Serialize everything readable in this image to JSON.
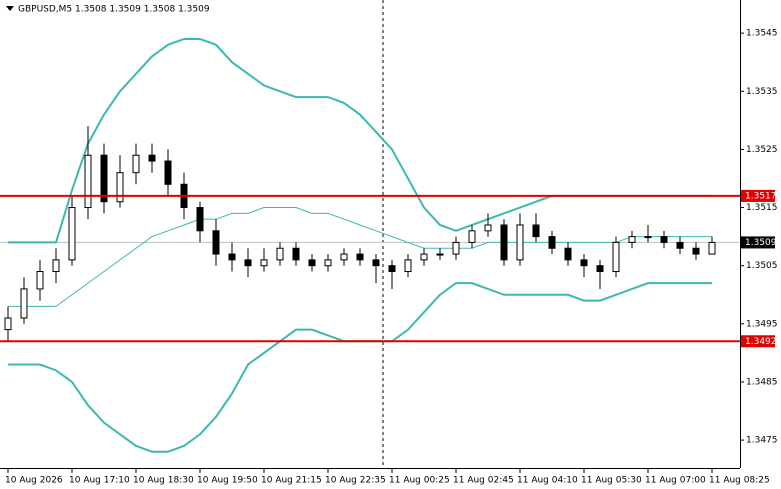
{
  "chart_data": {
    "type": "candlestick",
    "title": "GBPUSD,M5  1.3508 1.3509 1.3508 1.3509",
    "categories": [
      "10 Aug 2026",
      null,
      null,
      null,
      "10 Aug 17:10",
      null,
      null,
      null,
      "10 Aug 18:30",
      null,
      null,
      null,
      "10 Aug 19:50",
      null,
      null,
      null,
      "10 Aug 21:15",
      null,
      null,
      null,
      "10 Aug 22:35",
      null,
      null,
      null,
      "11 Aug 00:25",
      null,
      null,
      null,
      "11 Aug 02:45",
      null,
      null,
      null,
      "11 Aug 04:10",
      null,
      null,
      null,
      "11 Aug 05:30",
      null,
      null,
      null,
      "11 Aug 07:00",
      null,
      null,
      null,
      "11 Aug 08:25"
    ],
    "open": [
      1.3494,
      1.3496,
      1.3501,
      1.3504,
      1.3506,
      1.3515,
      1.3524,
      1.3516,
      1.3521,
      1.3524,
      1.3523,
      1.3519,
      1.3515,
      1.3511,
      1.3507,
      1.3506,
      1.3505,
      1.3506,
      1.3508,
      1.3506,
      1.3505,
      1.3506,
      1.3507,
      1.3506,
      1.3505,
      1.3504,
      1.3506,
      1.3507,
      1.3507,
      1.3509,
      1.3511,
      1.3512,
      1.3506,
      1.3512,
      1.351,
      1.3508,
      1.3506,
      1.3505,
      1.3504,
      1.3509,
      1.351,
      1.351,
      1.3509,
      1.3508,
      1.3507
    ],
    "high": [
      1.3498,
      1.3503,
      1.3506,
      1.3508,
      1.3517,
      1.3529,
      1.3526,
      1.3524,
      1.3526,
      1.3526,
      1.3525,
      1.3521,
      1.3516,
      1.3513,
      1.3509,
      1.3508,
      1.3508,
      1.3509,
      1.3509,
      1.3507,
      1.3507,
      1.3508,
      1.3508,
      1.3507,
      1.3506,
      1.3507,
      1.3508,
      1.3508,
      1.351,
      1.3512,
      1.3514,
      1.3513,
      1.3514,
      1.3514,
      1.3511,
      1.3509,
      1.3507,
      1.3506,
      1.351,
      1.3511,
      1.3512,
      1.3511,
      1.351,
      1.3509,
      1.351
    ],
    "low": [
      1.3492,
      1.3495,
      1.3499,
      1.3502,
      1.3505,
      1.3513,
      1.3514,
      1.3515,
      1.3519,
      1.3521,
      1.3517,
      1.3513,
      1.3509,
      1.3505,
      1.3504,
      1.3503,
      1.3504,
      1.3505,
      1.3505,
      1.3504,
      1.3504,
      1.3505,
      1.3505,
      1.3502,
      1.3501,
      1.3503,
      1.3505,
      1.3506,
      1.3506,
      1.3508,
      1.351,
      1.3505,
      1.3505,
      1.3509,
      1.3507,
      1.3505,
      1.3503,
      1.3501,
      1.3503,
      1.3508,
      1.3509,
      1.3508,
      1.3507,
      1.3506,
      1.3507
    ],
    "close": [
      1.3496,
      1.3501,
      1.3504,
      1.3506,
      1.3515,
      1.3524,
      1.3516,
      1.3521,
      1.3524,
      1.3523,
      1.3519,
      1.3515,
      1.3511,
      1.3507,
      1.3506,
      1.3505,
      1.3506,
      1.3508,
      1.3506,
      1.3505,
      1.3506,
      1.3507,
      1.3506,
      1.3505,
      1.3504,
      1.3506,
      1.3507,
      1.3507,
      1.3509,
      1.3511,
      1.3512,
      1.3506,
      1.3512,
      1.351,
      1.3508,
      1.3506,
      1.3505,
      1.3504,
      1.3509,
      1.351,
      1.351,
      1.3509,
      1.3508,
      1.3507,
      1.3509
    ],
    "bands": [
      {
        "color": "#3bb8b0",
        "values": [
          1.3509,
          1.3509,
          1.3509,
          1.3509,
          1.3518,
          1.3526,
          1.3531,
          1.3535,
          1.3538,
          1.3541,
          1.3543,
          1.3544,
          1.3544,
          1.3543,
          1.354,
          1.3538,
          1.3536,
          1.3535,
          1.3534,
          1.3534,
          1.3534,
          1.3533,
          1.3531,
          1.3528,
          1.3525,
          1.352,
          1.3515,
          1.3512,
          1.3511,
          1.3512,
          1.3513,
          1.3514,
          1.3515,
          1.3516,
          1.3517,
          1.3517,
          1.3517,
          1.3517,
          1.3517,
          1.3517,
          1.3517,
          1.3517,
          1.3517,
          1.3517,
          1.3517
        ]
      },
      {
        "color": "#3bb8b0",
        "values": [
          1.3498,
          1.3498,
          1.3498,
          1.3498,
          1.35,
          1.3502,
          1.3504,
          1.3506,
          1.3508,
          1.351,
          1.3511,
          1.3512,
          1.3513,
          1.3513,
          1.3514,
          1.3514,
          1.3515,
          1.3515,
          1.3515,
          1.3514,
          1.3514,
          1.3513,
          1.3512,
          1.3511,
          1.351,
          1.3509,
          1.3508,
          1.3508,
          1.3508,
          1.3508,
          1.3509,
          1.3509,
          1.3509,
          1.3509,
          1.3509,
          1.3509,
          1.3509,
          1.3509,
          1.3509,
          1.351,
          1.351,
          1.351,
          1.351,
          1.351,
          1.351
        ]
      },
      {
        "color": "#3bb8b0",
        "values": [
          1.3488,
          1.3488,
          1.3488,
          1.3487,
          1.3485,
          1.3481,
          1.3478,
          1.3476,
          1.3474,
          1.3473,
          1.3473,
          1.3474,
          1.3476,
          1.3479,
          1.3483,
          1.3488,
          1.349,
          1.3492,
          1.3494,
          1.3494,
          1.3493,
          1.3492,
          1.3492,
          1.3492,
          1.3492,
          1.3494,
          1.3497,
          1.35,
          1.3502,
          1.3502,
          1.3501,
          1.35,
          1.35,
          1.35,
          1.35,
          1.35,
          1.3499,
          1.3499,
          1.35,
          1.3501,
          1.3502,
          1.3502,
          1.3502,
          1.3502,
          1.3502
        ]
      }
    ],
    "hlines": [
      {
        "value": 1.3517,
        "color": "#e00000"
      },
      {
        "value": 1.3492,
        "color": "#e00000"
      }
    ],
    "last": 1.3509,
    "ylim": [
      1.34702,
      1.35507
    ],
    "yticks": [
      1.3475,
      1.3485,
      1.3495,
      1.3505,
      1.3515,
      1.3525,
      1.3535,
      1.3545
    ]
  }
}
